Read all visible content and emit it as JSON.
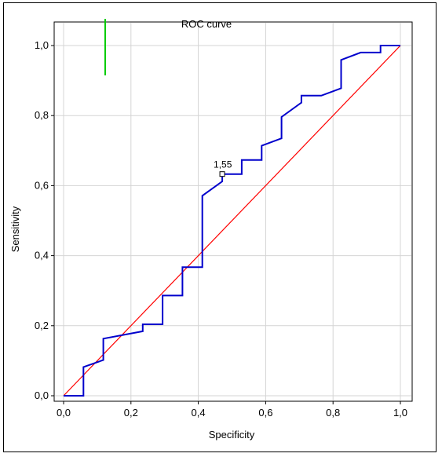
{
  "chart_data": {
    "type": "line",
    "title": "ROC curve",
    "xlabel": "Specificity",
    "ylabel": "Sensitivity",
    "xlim": [
      0.0,
      1.0
    ],
    "ylim": [
      0.0,
      1.0
    ],
    "x_ticks": [
      "0,0",
      "0,2",
      "0,4",
      "0,6",
      "0,8",
      "1,0"
    ],
    "y_ticks": [
      "0,0",
      "0,2",
      "0,4",
      "0,6",
      "0,8",
      "1,0"
    ],
    "grid": true,
    "series": [
      {
        "color": "#0000cc",
        "style": "step",
        "x": [
          0.0,
          0.059,
          0.059,
          0.118,
          0.118,
          0.235,
          0.235,
          0.294,
          0.294,
          0.353,
          0.353,
          0.412,
          0.412,
          0.471,
          0.471,
          0.529,
          0.529,
          0.588,
          0.588,
          0.647,
          0.647,
          0.706,
          0.706,
          0.765,
          0.824,
          0.824,
          0.882,
          0.941,
          0.941,
          1.0
        ],
        "y": [
          0.0,
          0.0,
          0.082,
          0.102,
          0.163,
          0.184,
          0.204,
          0.204,
          0.286,
          0.286,
          0.367,
          0.367,
          0.571,
          0.612,
          0.633,
          0.633,
          0.673,
          0.673,
          0.714,
          0.735,
          0.796,
          0.837,
          0.857,
          0.857,
          0.878,
          0.959,
          0.98,
          0.98,
          1.0,
          1.0
        ]
      },
      {
        "color": "#ff0000",
        "style": "line",
        "x": [
          0.0,
          1.0
        ],
        "y": [
          0.0,
          1.0
        ]
      }
    ],
    "annotations": [
      {
        "text": "1,55",
        "x": 0.471,
        "y": 0.633
      }
    ],
    "legend_marker": {
      "color": "#00cc00"
    }
  }
}
